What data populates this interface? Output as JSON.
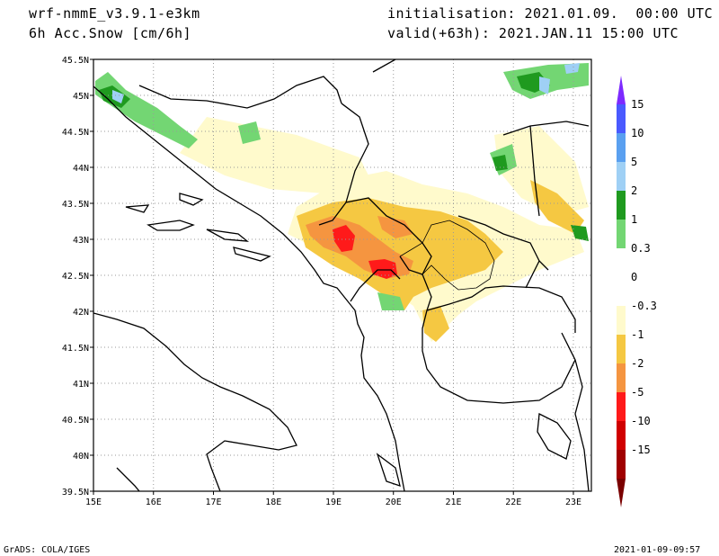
{
  "header": {
    "model": "wrf-nmmE_v3.9.1-e3km",
    "field": "6h Acc.Snow [cm/6h]",
    "initialisation": "initialisation: 2021.01.09.  00:00 UTC",
    "valid": "valid(+63h): 2021.JAN.11 15:00 UTC"
  },
  "footer": {
    "credit": "GrADS: COLA/IGES",
    "timestamp": "2021-01-09-09:57"
  },
  "map": {
    "lon_range": [
      15,
      23.3
    ],
    "lat_range": [
      39.5,
      45.5
    ],
    "lon_ticks": [
      "15E",
      "16E",
      "17E",
      "18E",
      "19E",
      "20E",
      "21E",
      "22E",
      "23E"
    ],
    "lat_ticks": [
      "39.5N",
      "40N",
      "40.5N",
      "41N",
      "41.5N",
      "42N",
      "42.5N",
      "43N",
      "43.5N",
      "44N",
      "44.5N",
      "45N",
      "45.5N"
    ],
    "grid": "dotted"
  },
  "colorbar": {
    "labels": [
      "15",
      "10",
      "5",
      "2",
      "1",
      "0.3",
      "0",
      "-0.3",
      "-1",
      "-2",
      "-5",
      "-10",
      "-15"
    ],
    "colors": [
      "#7d2aff",
      "#4a5aff",
      "#5aa0f0",
      "#9fd0f5",
      "#1f9a1f",
      "#73d673",
      "#ffffff",
      "#ffffff",
      "#fffacc",
      "#f5c842",
      "#f59540",
      "#ff1a1a",
      "#d00000",
      "#a00000",
      "#7a0000"
    ]
  }
}
